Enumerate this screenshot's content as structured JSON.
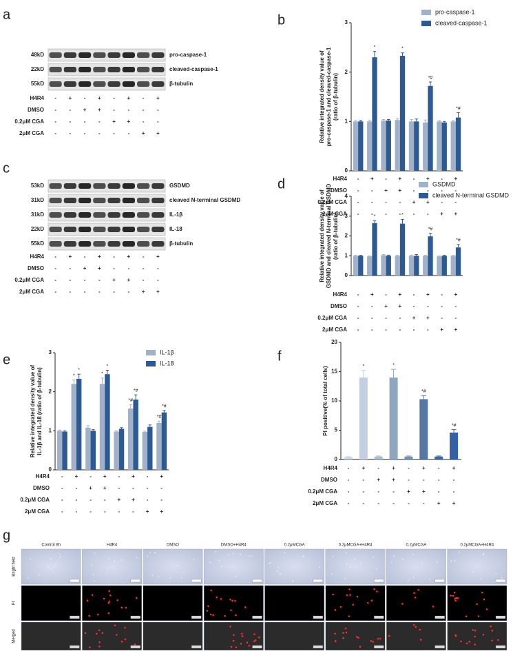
{
  "blots": [
    {
      "label": "a",
      "bands": [
        {
          "size": "48kD",
          "name": "pro-caspase-1"
        },
        {
          "size": "22kD",
          "name": "cleaved-caspase-1"
        },
        {
          "size": "55kD",
          "name": "β-tubulin"
        }
      ],
      "treatments": [
        {
          "name": "H4R4",
          "signs": [
            "-",
            "+",
            "-",
            "+",
            "-",
            "+",
            "-",
            "+"
          ]
        },
        {
          "name": "DMSO",
          "signs": [
            "-",
            "-",
            "+",
            "+",
            "-",
            "-",
            "-",
            "-"
          ]
        },
        {
          "name": "0.2μM CGA",
          "signs": [
            "-",
            "-",
            "-",
            "-",
            "+",
            "+",
            "-",
            "-"
          ]
        },
        {
          "name": "2μM CGA",
          "signs": [
            "-",
            "-",
            "-",
            "-",
            "-",
            "-",
            "+",
            "+"
          ]
        }
      ]
    },
    {
      "label": "c",
      "bands": [
        {
          "size": "53kD",
          "name": "GSDMD"
        },
        {
          "size": "31kD",
          "name": "cleaved N-terminal GSDMD"
        },
        {
          "size": "31kD",
          "name": "IL-1β"
        },
        {
          "size": "22kD",
          "name": "IL-18"
        },
        {
          "size": "55kD",
          "name": "β-tubulin"
        }
      ],
      "treatments": [
        {
          "name": "H4R4",
          "signs": [
            "-",
            "+",
            "-",
            "+",
            "-",
            "+",
            "-",
            "+"
          ]
        },
        {
          "name": "DMSO",
          "signs": [
            "-",
            "-",
            "+",
            "+",
            "-",
            "-",
            "-",
            "-"
          ]
        },
        {
          "name": "0.2μM CGA",
          "signs": [
            "-",
            "-",
            "-",
            "-",
            "+",
            "+",
            "-",
            "-"
          ]
        },
        {
          "name": "2μM CGA",
          "signs": [
            "-",
            "-",
            "-",
            "-",
            "-",
            "-",
            "+",
            "+"
          ]
        }
      ]
    }
  ],
  "chart_data": [
    {
      "label": "b",
      "type": "bar",
      "y_label": [
        "Relative integrated density value of",
        "pro-caspase-1 and cleaved-caspase-1",
        "(ratio of β-tubulin)"
      ],
      "ylim": [
        0,
        3
      ],
      "yticks": [
        0,
        1,
        2,
        3
      ],
      "series": [
        {
          "name": "pro-caspase-1",
          "color": "#9fb2c9",
          "values": [
            1,
            1,
            1.02,
            1.03,
            1,
            0.98,
            1,
            1
          ],
          "errors": [
            0.02,
            0.02,
            0.02,
            0.03,
            0.04,
            0.05,
            0.02,
            0.02
          ]
        },
        {
          "name": "cleaved-caspase-1",
          "color": "#2d5a94",
          "values": [
            1,
            2.3,
            1.02,
            2.33,
            1,
            1.72,
            0.98,
            1.08
          ],
          "errors": [
            0.02,
            0.12,
            0.02,
            0.06,
            0.05,
            0.08,
            0.02,
            0.1
          ],
          "sig": [
            null,
            "*",
            null,
            "*",
            null,
            "*#",
            null,
            "*#"
          ]
        }
      ],
      "treatments": [
        {
          "name": "H4R4",
          "signs": [
            "-",
            "+",
            "-",
            "+",
            "-",
            "+",
            "-",
            "+"
          ]
        },
        {
          "name": "DMSO",
          "signs": [
            "-",
            "-",
            "+",
            "+",
            "-",
            "-",
            "-",
            "-"
          ]
        },
        {
          "name": "0.2μM CGA",
          "signs": [
            "-",
            "-",
            "-",
            "-",
            "+",
            "+",
            "-",
            "-"
          ]
        },
        {
          "name": "2μM CGA",
          "signs": [
            "-",
            "-",
            "-",
            "-",
            "-",
            "-",
            "+",
            "+"
          ]
        }
      ]
    },
    {
      "label": "d",
      "type": "bar",
      "y_label": [
        "Relative integrated density value of",
        "GSDMD and cleaved N-terminal GSDMD",
        "(ratio of β-tubulin)"
      ],
      "ylim": [
        0,
        4
      ],
      "yticks": [
        0,
        1,
        2,
        3,
        4
      ],
      "series": [
        {
          "name": "GSDMD",
          "color": "#9fb2c9",
          "values": [
            1,
            0.97,
            1.03,
            1,
            1,
            1,
            0.97,
            1
          ],
          "errors": [
            0.02,
            0.02,
            0.03,
            0.02,
            0.03,
            0.03,
            0.02,
            0.02
          ]
        },
        {
          "name": "cleaved N-terminal GSDMD",
          "color": "#2d5a94",
          "values": [
            1,
            2.65,
            1,
            2.62,
            1,
            1.98,
            1,
            1.42
          ],
          "errors": [
            0.02,
            0.12,
            0.03,
            0.22,
            0.06,
            0.15,
            0.02,
            0.15
          ],
          "sig": [
            null,
            "*",
            null,
            "*",
            null,
            "*#",
            null,
            "*#"
          ]
        }
      ],
      "treatments": [
        {
          "name": "H4R4",
          "signs": [
            "-",
            "+",
            "-",
            "+",
            "-",
            "+",
            "-",
            "+"
          ]
        },
        {
          "name": "DMSO",
          "signs": [
            "-",
            "-",
            "+",
            "+",
            "-",
            "-",
            "-",
            "-"
          ]
        },
        {
          "name": "0.2μM CGA",
          "signs": [
            "-",
            "-",
            "-",
            "-",
            "+",
            "+",
            "-",
            "-"
          ]
        },
        {
          "name": "2μM CGA",
          "signs": [
            "-",
            "-",
            "-",
            "-",
            "-",
            "-",
            "+",
            "+"
          ]
        }
      ]
    },
    {
      "label": "e",
      "type": "bar",
      "y_label": [
        "Relative integrated density value of",
        "IL-1β and IL-18  (ratio of β-tubulin)"
      ],
      "ylim": [
        0,
        3
      ],
      "yticks": [
        0,
        1,
        2,
        3
      ],
      "series": [
        {
          "name": "IL-1β",
          "color": "#9fb2c9",
          "values": [
            1,
            2.2,
            1.08,
            2.2,
            0.98,
            1.57,
            0.97,
            1.2
          ],
          "errors": [
            0.02,
            0.1,
            0.05,
            0.15,
            0.02,
            0.1,
            0.02,
            0.05
          ],
          "sig": [
            null,
            "*",
            null,
            "*",
            null,
            "*#",
            null,
            "*#"
          ]
        },
        {
          "name": "IL-18",
          "color": "#2d5a94",
          "values": [
            0.98,
            2.33,
            1,
            2.45,
            1.05,
            1.8,
            1.1,
            1.47
          ],
          "errors": [
            0.02,
            0.12,
            0.03,
            0.1,
            0.03,
            0.12,
            0.05,
            0.05
          ],
          "sig": [
            null,
            "*",
            null,
            "*",
            null,
            "*#",
            null,
            "*#"
          ]
        }
      ],
      "treatments": [
        {
          "name": "H4R4",
          "signs": [
            "-",
            "+",
            "-",
            "+",
            "-",
            "+",
            "-",
            "+"
          ]
        },
        {
          "name": "DMSO",
          "signs": [
            "-",
            "-",
            "+",
            "+",
            "-",
            "-",
            "-",
            "-"
          ]
        },
        {
          "name": "0.2μM CGA",
          "signs": [
            "-",
            "-",
            "-",
            "-",
            "+",
            "+",
            "-",
            "-"
          ]
        },
        {
          "name": "2μM CGA",
          "signs": [
            "-",
            "-",
            "-",
            "-",
            "-",
            "-",
            "+",
            "+"
          ]
        }
      ]
    },
    {
      "label": "f",
      "type": "bar",
      "y_label": [
        "PI positive(% of total cells)"
      ],
      "ylim": [
        0,
        20
      ],
      "yticks": [
        0,
        5,
        10,
        15,
        20
      ],
      "series": [
        {
          "colors": [
            "#c9d5e3",
            "#c2d0e2",
            "#a9bbd0",
            "#8fa6c0",
            "#7690b0",
            "#5577a3",
            "#3f66a0",
            "#3461a6"
          ],
          "values": [
            0.4,
            14,
            0.5,
            14,
            0.5,
            10.3,
            0.5,
            4.6
          ],
          "errors": [
            0.1,
            1.2,
            0.1,
            1.4,
            0.1,
            0.6,
            0.1,
            0.5
          ],
          "sig": [
            null,
            "*",
            null,
            "*",
            null,
            "*#",
            null,
            "*#"
          ]
        }
      ],
      "treatments": [
        {
          "name": "H4R4",
          "signs": [
            "-",
            "+",
            "-",
            "+",
            "-",
            "+",
            "-",
            "+"
          ]
        },
        {
          "name": "DMSO",
          "signs": [
            "-",
            "-",
            "+",
            "+",
            "-",
            "-",
            "-",
            "-"
          ]
        },
        {
          "name": "0.2μM CGA",
          "signs": [
            "-",
            "-",
            "-",
            "-",
            "+",
            "+",
            "-",
            "-"
          ]
        },
        {
          "name": "2μM CGA",
          "signs": [
            "-",
            "-",
            "-",
            "-",
            "-",
            "-",
            "+",
            "+"
          ]
        }
      ]
    }
  ],
  "microscopy": {
    "label": "g",
    "columns": [
      "Control 8h",
      "H4R4",
      "DMSO",
      "DMSO+H4R4",
      "0.2μMCGA",
      "0.2μMCGA+H4R4",
      "0.2μMCGA",
      "0.2μMCGA+H4R4"
    ],
    "rows": [
      "Bright field",
      "PI",
      "Merged"
    ]
  }
}
